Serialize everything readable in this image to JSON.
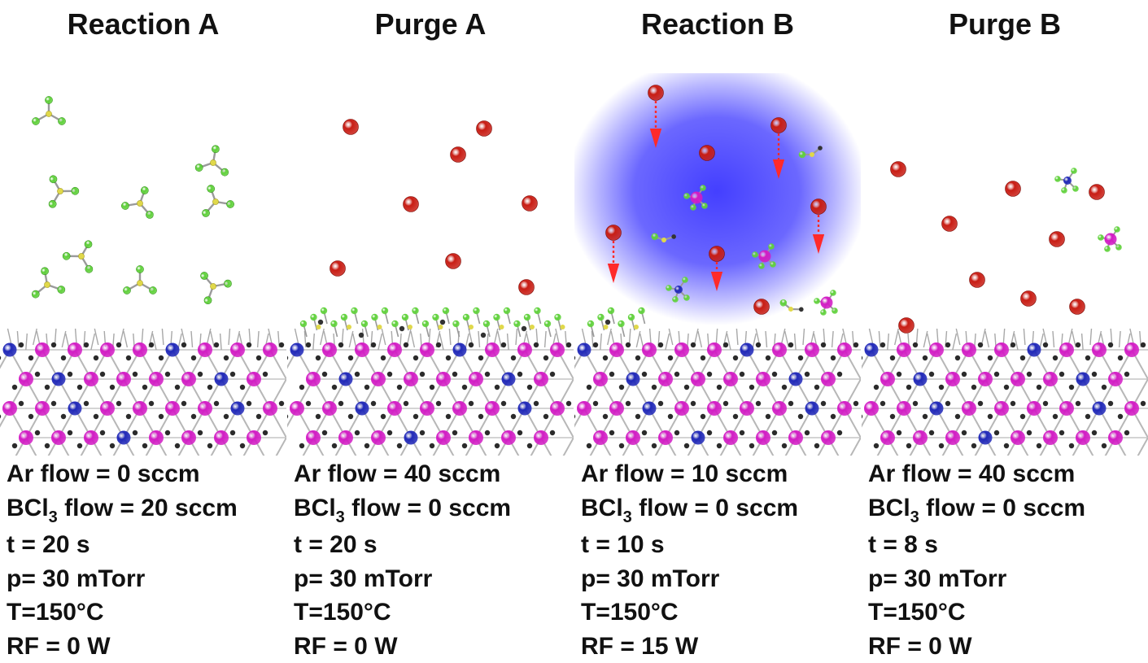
{
  "colors": {
    "argon": "#c81d14",
    "chlorine": "#5fd13a",
    "boron": "#e0d84a",
    "indium": "#d21cc4",
    "phosphorus_n": "#2028b8",
    "carbon_bond": "#333333",
    "bond": "#9a9a9a",
    "plasma": "#3a35ff",
    "arrow": "#ff2a2a"
  },
  "panels": [
    {
      "title": "Reaction A",
      "ar_flow": "Ar flow  = 0 sccm",
      "bcl3_prefix": "BCl",
      "bcl3_sub": "3",
      "bcl3_rest": " flow = 20 sccm",
      "time": "t = 20 s",
      "pressure": "p= 30 mTorr",
      "temperature": "T=150°C",
      "rf": "RF = 0 W"
    },
    {
      "title": "Purge A",
      "ar_flow": "Ar flow  = 40 sccm",
      "bcl3_prefix": "BCl",
      "bcl3_sub": "3",
      "bcl3_rest": " flow = 0 sccm",
      "time": "t = 20 s",
      "pressure": "p= 30 mTorr",
      "temperature": "T=150°C",
      "rf": "RF = 0 W"
    },
    {
      "title": "Reaction B",
      "ar_flow": "Ar flow  = 10 sccm",
      "bcl3_prefix": "BCl",
      "bcl3_sub": "3",
      "bcl3_rest": " flow = 0 sccm",
      "time": "t = 10 s",
      "pressure": "p= 30 mTorr",
      "temperature": "T=150°C",
      "rf": "RF = 15 W"
    },
    {
      "title": "Purge B",
      "ar_flow": "Ar flow  = 40 sccm",
      "bcl3_prefix": "BCl",
      "bcl3_sub": "3",
      "bcl3_rest": " flow = 0 sccm",
      "time": "t = 8 s",
      "pressure": "p= 30 mTorr",
      "temperature": "T=150°C",
      "rf": "RF = 0 W"
    }
  ]
}
